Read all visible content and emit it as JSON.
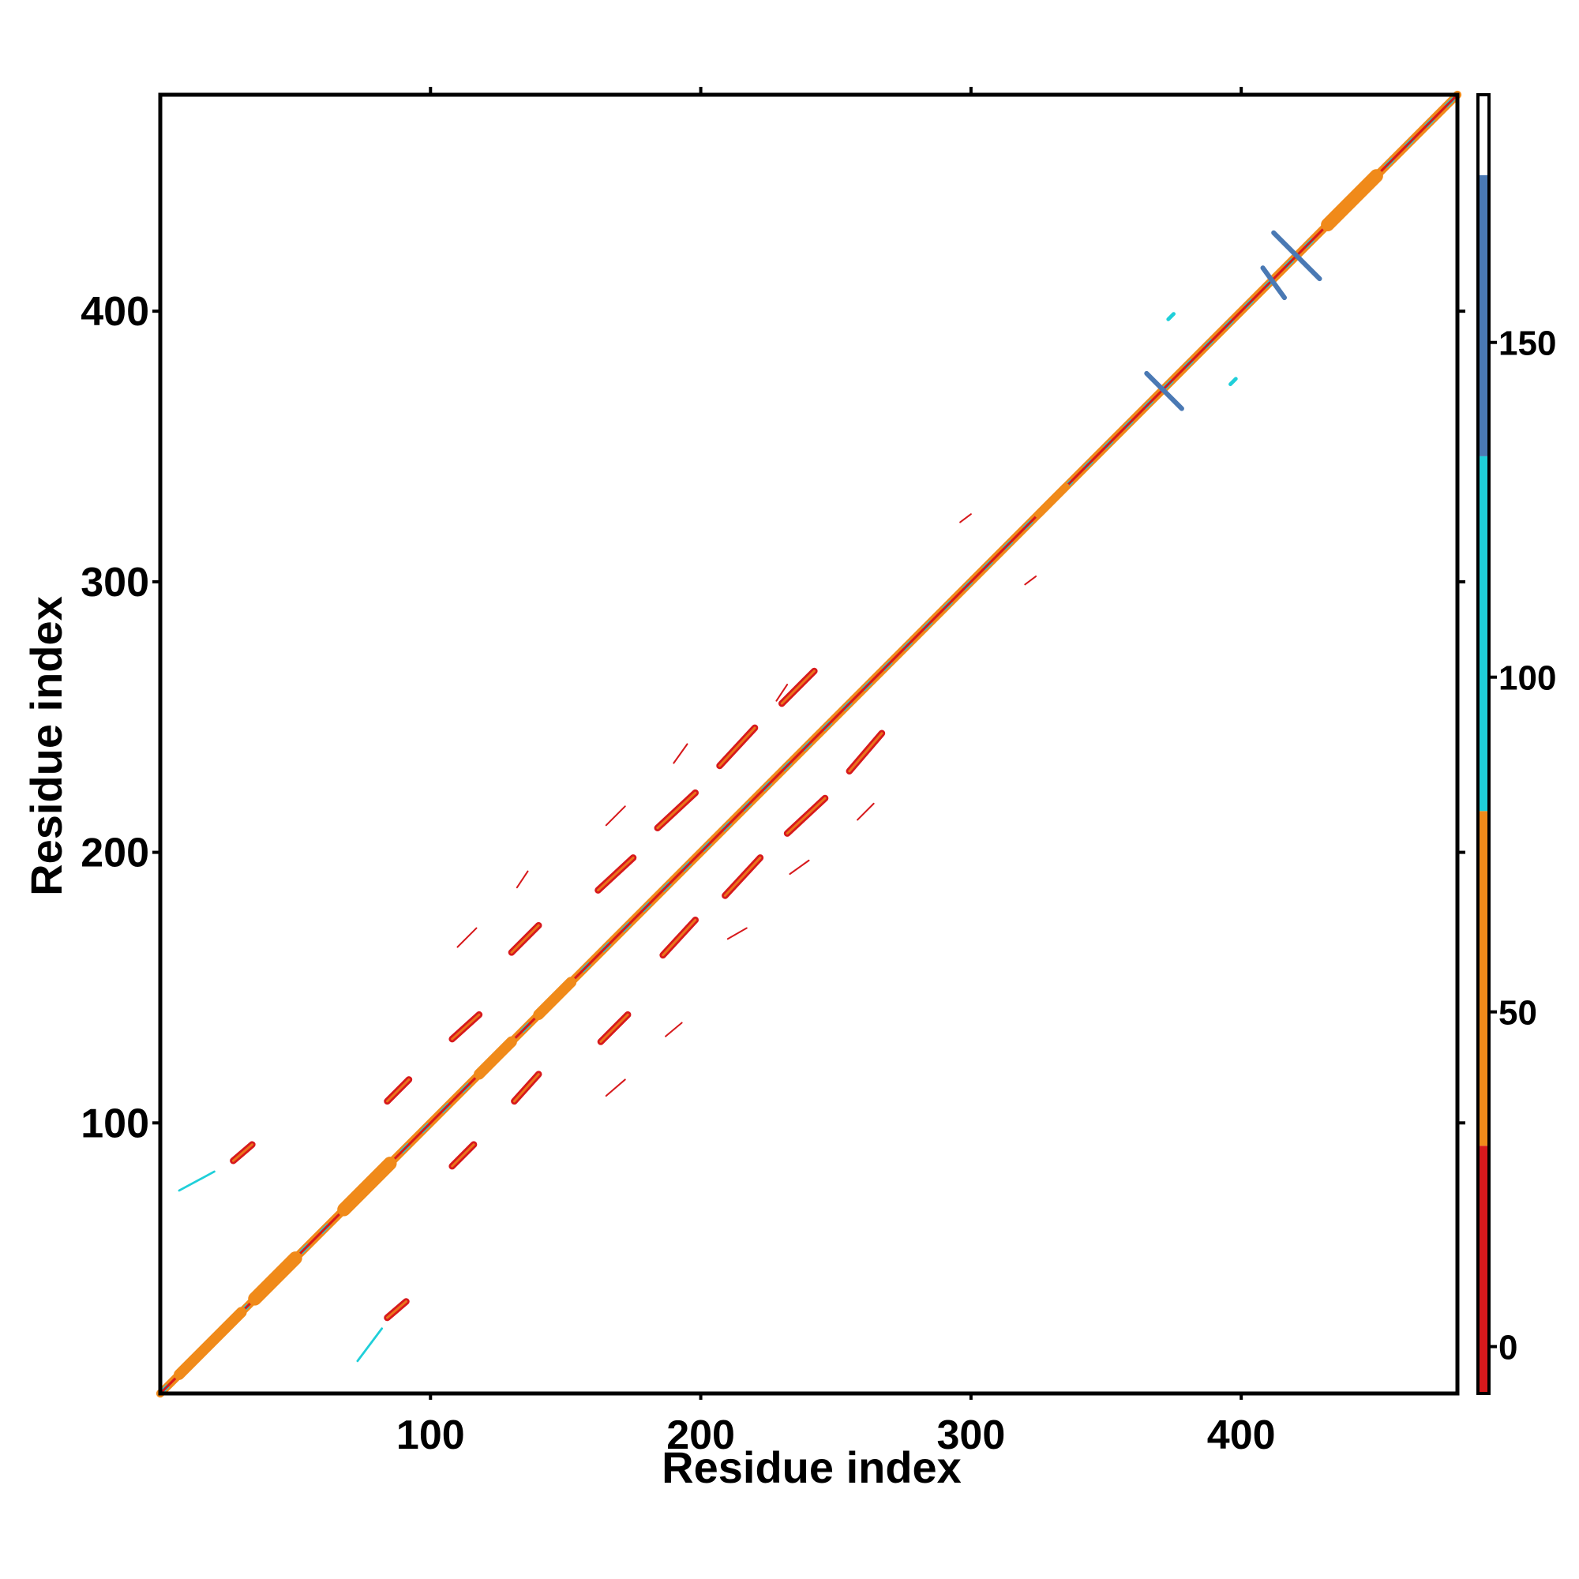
{
  "chart_data": {
    "type": "heatmap",
    "title": "",
    "xlabel": "Residue index",
    "ylabel": "Residue index",
    "xlim": [
      0,
      480
    ],
    "ylim": [
      0,
      480
    ],
    "x_ticks": [
      100,
      200,
      300,
      400
    ],
    "y_ticks": [
      100,
      200,
      300,
      400
    ],
    "colorbar": {
      "range": [
        -7,
        187
      ],
      "ticks": [
        0,
        50,
        100,
        150
      ],
      "bands": [
        {
          "from": -7,
          "to": 30,
          "color": "#d7191c"
        },
        {
          "from": 30,
          "to": 80,
          "color": "#f08a1a"
        },
        {
          "from": 80,
          "to": 133,
          "color": "#1fcfd9"
        },
        {
          "from": 133,
          "to": 175,
          "color": "#4a79b4"
        },
        {
          "from": 175,
          "to": 187,
          "color": "#ffffff"
        }
      ]
    },
    "diagonal": {
      "from": 0,
      "to": 480
    },
    "features": [
      {
        "x0": 7,
        "y0": 7,
        "x1": 30,
        "y1": 30,
        "width": 4,
        "color": "#f08a1a"
      },
      {
        "x0": 35,
        "y0": 35,
        "x1": 50,
        "y1": 50,
        "width": 5,
        "color": "#f08a1a"
      },
      {
        "x0": 68,
        "y0": 68,
        "x1": 85,
        "y1": 85,
        "width": 5,
        "color": "#f08a1a"
      },
      {
        "x0": 118,
        "y0": 118,
        "x1": 130,
        "y1": 130,
        "width": 4,
        "color": "#f08a1a"
      },
      {
        "x0": 140,
        "y0": 140,
        "x1": 152,
        "y1": 152,
        "width": 4,
        "color": "#f08a1a"
      },
      {
        "x0": 325,
        "y0": 325,
        "x1": 335,
        "y1": 335,
        "width": 3,
        "color": "#f08a1a"
      },
      {
        "x0": 432,
        "y0": 432,
        "x1": 450,
        "y1": 450,
        "width": 5,
        "color": "#f08a1a"
      },
      {
        "x0": 27,
        "y0": 86,
        "x1": 34,
        "y1": 92,
        "width": 2.5,
        "color": "#d7191c"
      },
      {
        "x0": 84,
        "y0": 28,
        "x1": 91,
        "y1": 34,
        "width": 2.5,
        "color": "#d7191c"
      },
      {
        "x0": 84,
        "y0": 108,
        "x1": 92,
        "y1": 116,
        "width": 2.5,
        "color": "#d7191c"
      },
      {
        "x0": 108,
        "y0": 84,
        "x1": 116,
        "y1": 92,
        "width": 2.5,
        "color": "#d7191c"
      },
      {
        "x0": 108,
        "y0": 131,
        "x1": 118,
        "y1": 140,
        "width": 2.5,
        "color": "#d7191c"
      },
      {
        "x0": 131,
        "y0": 108,
        "x1": 140,
        "y1": 118,
        "width": 2.5,
        "color": "#d7191c"
      },
      {
        "x0": 130,
        "y0": 163,
        "x1": 140,
        "y1": 173,
        "width": 2.5,
        "color": "#d7191c"
      },
      {
        "x0": 163,
        "y0": 130,
        "x1": 173,
        "y1": 140,
        "width": 2.5,
        "color": "#d7191c"
      },
      {
        "x0": 162,
        "y0": 186,
        "x1": 175,
        "y1": 198,
        "width": 2.5,
        "color": "#d7191c"
      },
      {
        "x0": 186,
        "y0": 162,
        "x1": 198,
        "y1": 175,
        "width": 2.5,
        "color": "#d7191c"
      },
      {
        "x0": 184,
        "y0": 209,
        "x1": 198,
        "y1": 222,
        "width": 2.5,
        "color": "#d7191c"
      },
      {
        "x0": 209,
        "y0": 184,
        "x1": 222,
        "y1": 198,
        "width": 2.5,
        "color": "#d7191c"
      },
      {
        "x0": 207,
        "y0": 232,
        "x1": 220,
        "y1": 246,
        "width": 2.5,
        "color": "#d7191c"
      },
      {
        "x0": 232,
        "y0": 207,
        "x1": 246,
        "y1": 220,
        "width": 2.5,
        "color": "#d7191c"
      },
      {
        "x0": 230,
        "y0": 255,
        "x1": 242,
        "y1": 267,
        "width": 2.5,
        "color": "#d7191c"
      },
      {
        "x0": 255,
        "y0": 230,
        "x1": 267,
        "y1": 244,
        "width": 2.5,
        "color": "#d7191c"
      },
      {
        "x0": 228,
        "y0": 256,
        "x1": 232,
        "y1": 262,
        "width": 0.6,
        "color": "#d7191c"
      },
      {
        "x0": 190,
        "y0": 233,
        "x1": 195,
        "y1": 240,
        "width": 0.6,
        "color": "#d7191c"
      },
      {
        "x0": 165,
        "y0": 210,
        "x1": 172,
        "y1": 217,
        "width": 0.6,
        "color": "#d7191c"
      },
      {
        "x0": 132,
        "y0": 187,
        "x1": 136,
        "y1": 193,
        "width": 0.6,
        "color": "#d7191c"
      },
      {
        "x0": 110,
        "y0": 165,
        "x1": 117,
        "y1": 172,
        "width": 0.6,
        "color": "#d7191c"
      },
      {
        "x0": 233,
        "y0": 192,
        "x1": 240,
        "y1": 197,
        "width": 0.6,
        "color": "#d7191c"
      },
      {
        "x0": 210,
        "y0": 168,
        "x1": 217,
        "y1": 172,
        "width": 0.6,
        "color": "#d7191c"
      },
      {
        "x0": 187,
        "y0": 132,
        "x1": 193,
        "y1": 137,
        "width": 0.6,
        "color": "#d7191c"
      },
      {
        "x0": 165,
        "y0": 110,
        "x1": 172,
        "y1": 116,
        "width": 0.6,
        "color": "#d7191c"
      },
      {
        "x0": 258,
        "y0": 212,
        "x1": 264,
        "y1": 218,
        "width": 0.6,
        "color": "#d7191c"
      },
      {
        "x0": 296,
        "y0": 322,
        "x1": 300,
        "y1": 325,
        "width": 0.6,
        "color": "#d7191c"
      },
      {
        "x0": 320,
        "y0": 299,
        "x1": 324,
        "y1": 302,
        "width": 0.6,
        "color": "#d7191c"
      },
      {
        "x0": 365,
        "y0": 377,
        "x1": 378,
        "y1": 364,
        "width": 1.8,
        "color": "#4a79b4"
      },
      {
        "x0": 408,
        "y0": 416,
        "x1": 416,
        "y1": 405,
        "width": 1.8,
        "color": "#4a79b4"
      },
      {
        "x0": 412,
        "y0": 429,
        "x1": 429,
        "y1": 412,
        "width": 1.8,
        "color": "#4a79b4"
      },
      {
        "x0": 373,
        "y0": 397,
        "x1": 375,
        "y1": 399,
        "width": 1.4,
        "color": "#1fcfd9"
      },
      {
        "x0": 396,
        "y0": 373,
        "x1": 398,
        "y1": 375,
        "width": 1.4,
        "color": "#1fcfd9"
      },
      {
        "x0": 7,
        "y0": 75,
        "x1": 20,
        "y1": 82,
        "width": 0.8,
        "color": "#1fcfd9"
      },
      {
        "x0": 73,
        "y0": 12,
        "x1": 82,
        "y1": 24,
        "width": 0.8,
        "color": "#1fcfd9"
      }
    ]
  }
}
